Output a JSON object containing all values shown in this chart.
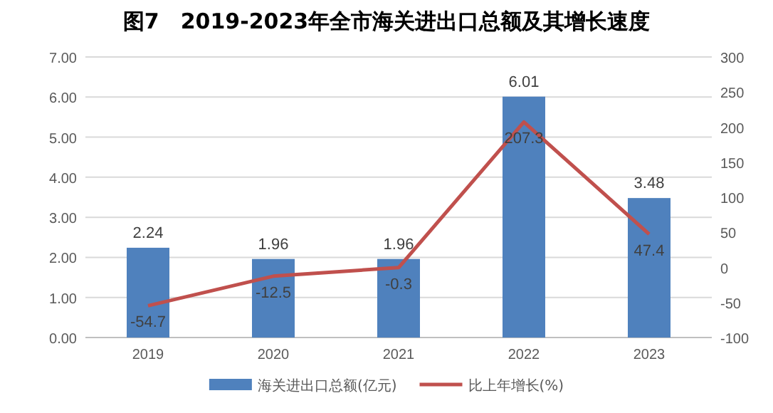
{
  "chart_data": {
    "type": "bar",
    "title": "图7　2019-2023年全市海关进出口总额及其增长速度",
    "categories": [
      "2019",
      "2020",
      "2021",
      "2022",
      "2023"
    ],
    "series": [
      {
        "name": "海关进出口总额(亿元)",
        "color": "#4f81bd",
        "values": [
          2.24,
          1.96,
          1.96,
          6.01,
          3.48
        ]
      },
      {
        "name": "比上年增长(%)",
        "type": "line",
        "axis": "y2",
        "color": "#c0504d",
        "values": [
          -54.7,
          -12.5,
          -0.3,
          207.3,
          47.4
        ]
      }
    ],
    "ylim": [
      0,
      7
    ],
    "yticks": [
      {
        "value": 0,
        "label": "0.00"
      },
      {
        "value": 1,
        "label": "1.00"
      },
      {
        "value": 2,
        "label": "2.00"
      },
      {
        "value": 3,
        "label": "3.00"
      },
      {
        "value": 4,
        "label": "4.00"
      },
      {
        "value": 5,
        "label": "5.00"
      },
      {
        "value": 6,
        "label": "6.00"
      },
      {
        "value": 7,
        "label": "7.00"
      }
    ],
    "y2lim": [
      -100,
      300
    ],
    "y2ticks": [
      -100,
      -50,
      0,
      50,
      100,
      150,
      200,
      250,
      300
    ],
    "grid": "y",
    "legend": "bottom",
    "data_labels": true,
    "marker": "none",
    "line_style": "solid"
  }
}
